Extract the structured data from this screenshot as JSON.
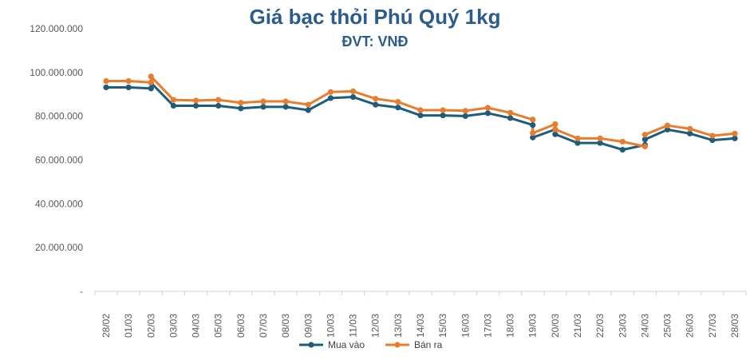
{
  "chart_data": {
    "type": "line",
    "title": "Giá bạc thỏi Phú Quý 1kg",
    "subtitle": "ĐVT: VNĐ",
    "xlabel": "",
    "ylabel": "",
    "ylim": [
      0,
      120000000
    ],
    "yticks": [
      {
        "value": 0,
        "label": "-"
      },
      {
        "value": 20000000,
        "label": "20.000.000"
      },
      {
        "value": 40000000,
        "label": "40.000.000"
      },
      {
        "value": 60000000,
        "label": "60.000.000"
      },
      {
        "value": 80000000,
        "label": "80.000.000"
      },
      {
        "value": 100000000,
        "label": "100.000.000"
      },
      {
        "value": 120000000,
        "label": "120.000.000"
      }
    ],
    "tick_labels": [
      "28/02",
      "01/03",
      "02/03",
      "03/03",
      "04/03",
      "05/03",
      "06/03",
      "07/03",
      "08/03",
      "09/03",
      "10/03",
      "11/03",
      "12/03",
      "13/03",
      "14/03",
      "15/03",
      "16/03",
      "17/03",
      "18/03",
      "19/03",
      "20/03",
      "21/03",
      "22/03",
      "23/03",
      "24/03",
      "25/03",
      "26/03",
      "27/03",
      "28/03"
    ],
    "x": [
      0,
      1,
      2,
      2,
      3,
      4,
      5,
      6,
      7,
      8,
      9,
      10,
      11,
      12,
      13,
      14,
      15,
      16,
      17,
      18,
      19,
      19,
      20,
      20,
      21,
      22,
      23,
      24,
      24,
      25,
      26,
      27,
      28
    ],
    "grid": false,
    "legend": "bottom-center",
    "series": [
      {
        "name": "Mua vào",
        "color": "#1F5C7A",
        "values": [
          93200000,
          93200000,
          92700000,
          95300000,
          84800000,
          84800000,
          84800000,
          83600000,
          84300000,
          84300000,
          82800000,
          88300000,
          88800000,
          85300000,
          84000000,
          80400000,
          80400000,
          80100000,
          81400000,
          79200000,
          76000000,
          70300000,
          74000000,
          71800000,
          67800000,
          67800000,
          64700000,
          66900000,
          69400000,
          73900000,
          72100000,
          69100000,
          69900000
        ]
      },
      {
        "name": "Bán ra",
        "color": "#E87D2E",
        "values": [
          96100000,
          96100000,
          95500000,
          98200000,
          87500000,
          87200000,
          87500000,
          86200000,
          86800000,
          86800000,
          85300000,
          91100000,
          91400000,
          88000000,
          86600000,
          82800000,
          82800000,
          82500000,
          83900000,
          81600000,
          78500000,
          72300000,
          76400000,
          74000000,
          69900000,
          69900000,
          68400000,
          66200000,
          71600000,
          75800000,
          74300000,
          71100000,
          72100000
        ]
      }
    ]
  }
}
